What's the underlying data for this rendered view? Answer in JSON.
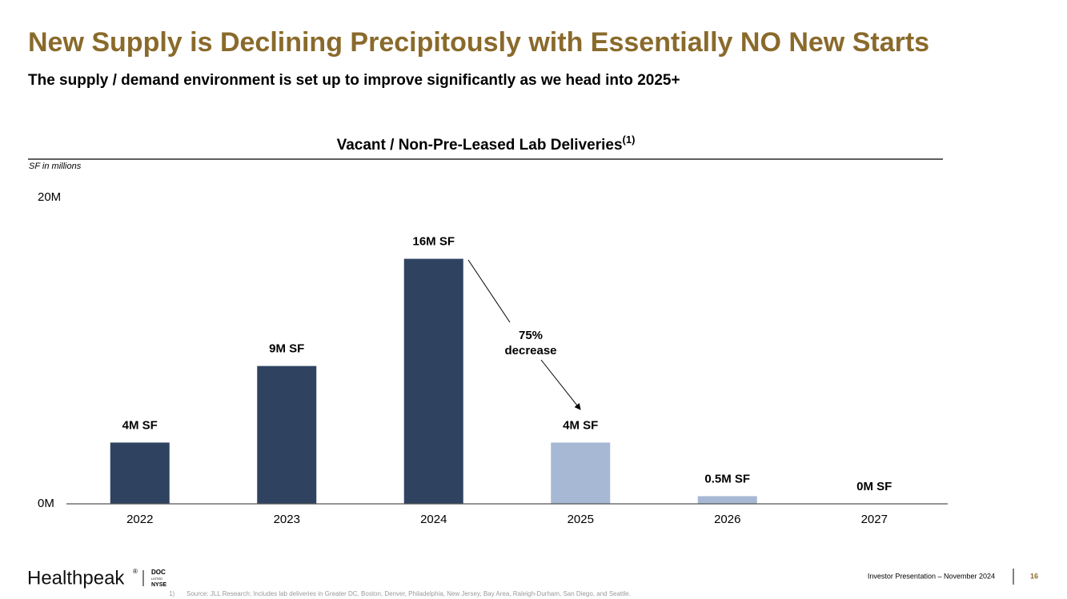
{
  "header": {
    "title": "New Supply is Declining Precipitously with Essentially NO New Starts",
    "subtitle": "The supply / demand environment is set up to improve significantly as we head into 2025+"
  },
  "chart_data": {
    "type": "bar",
    "title": "Vacant / Non-Pre-Leased Lab Deliveries",
    "title_note": "(1)",
    "y_label": "SF in millions",
    "categories": [
      "2022",
      "2023",
      "2024",
      "2025",
      "2026",
      "2027"
    ],
    "values": [
      4,
      9,
      16,
      4,
      0.5,
      0
    ],
    "value_labels": [
      "4M SF",
      "9M SF",
      "16M SF",
      "4M SF",
      "0.5M SF",
      "0M SF"
    ],
    "colors": [
      "#2f4361",
      "#2f4361",
      "#2f4361",
      "#a7b8d5",
      "#a7b8d5",
      "#a7b8d5"
    ],
    "ylim": [
      0,
      20
    ],
    "yticks": [
      {
        "value": 0,
        "label": "0M"
      },
      {
        "value": 20,
        "label": "20M"
      }
    ],
    "grid": false,
    "annotation": [
      "75%",
      "decrease"
    ]
  },
  "footer": {
    "logo": "Healthpeak",
    "logo_mark": "®",
    "ticker": "DOC",
    "listed": "LISTED",
    "exchange": "NYSE",
    "presentation": "Investor Presentation – November 2024",
    "page": "16",
    "footnote_number": "1)",
    "footnote": "Source: JLL Research; Includes lab deliveries in Greater DC, Boston, Denver, Philadelphia, New Jersey, Bay Area, Raleigh-Durham, San Diego, and Seattle."
  }
}
